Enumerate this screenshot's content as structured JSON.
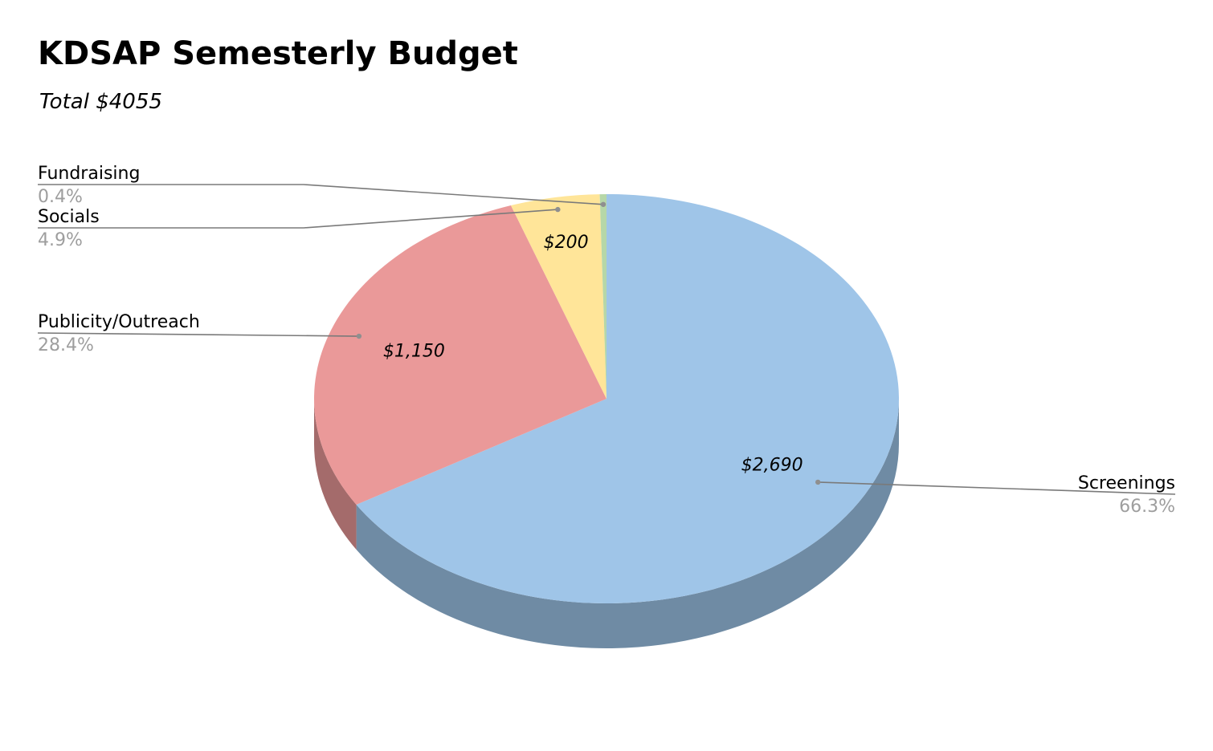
{
  "chart_data": {
    "type": "pie",
    "title": "KDSAP Semesterly Budget",
    "subtitle": "Total $4055",
    "categories": [
      "Screenings",
      "Publicity/Outreach",
      "Socials",
      "Fundraising"
    ],
    "values": [
      2690,
      1150,
      200,
      15
    ],
    "value_labels": [
      "$2,690",
      "$1,150",
      "$200",
      ""
    ],
    "percent_labels": [
      "66.3%",
      "28.4%",
      "4.9%",
      "0.4%"
    ],
    "colors": [
      "#9fc5e8",
      "#ea9999",
      "#ffe599",
      "#b6d7a8"
    ],
    "side_colors": [
      "#6f8ba4",
      "#a46b6b",
      "#b3a06b",
      "#7f9676"
    ],
    "style": "3d",
    "legend": "none"
  }
}
